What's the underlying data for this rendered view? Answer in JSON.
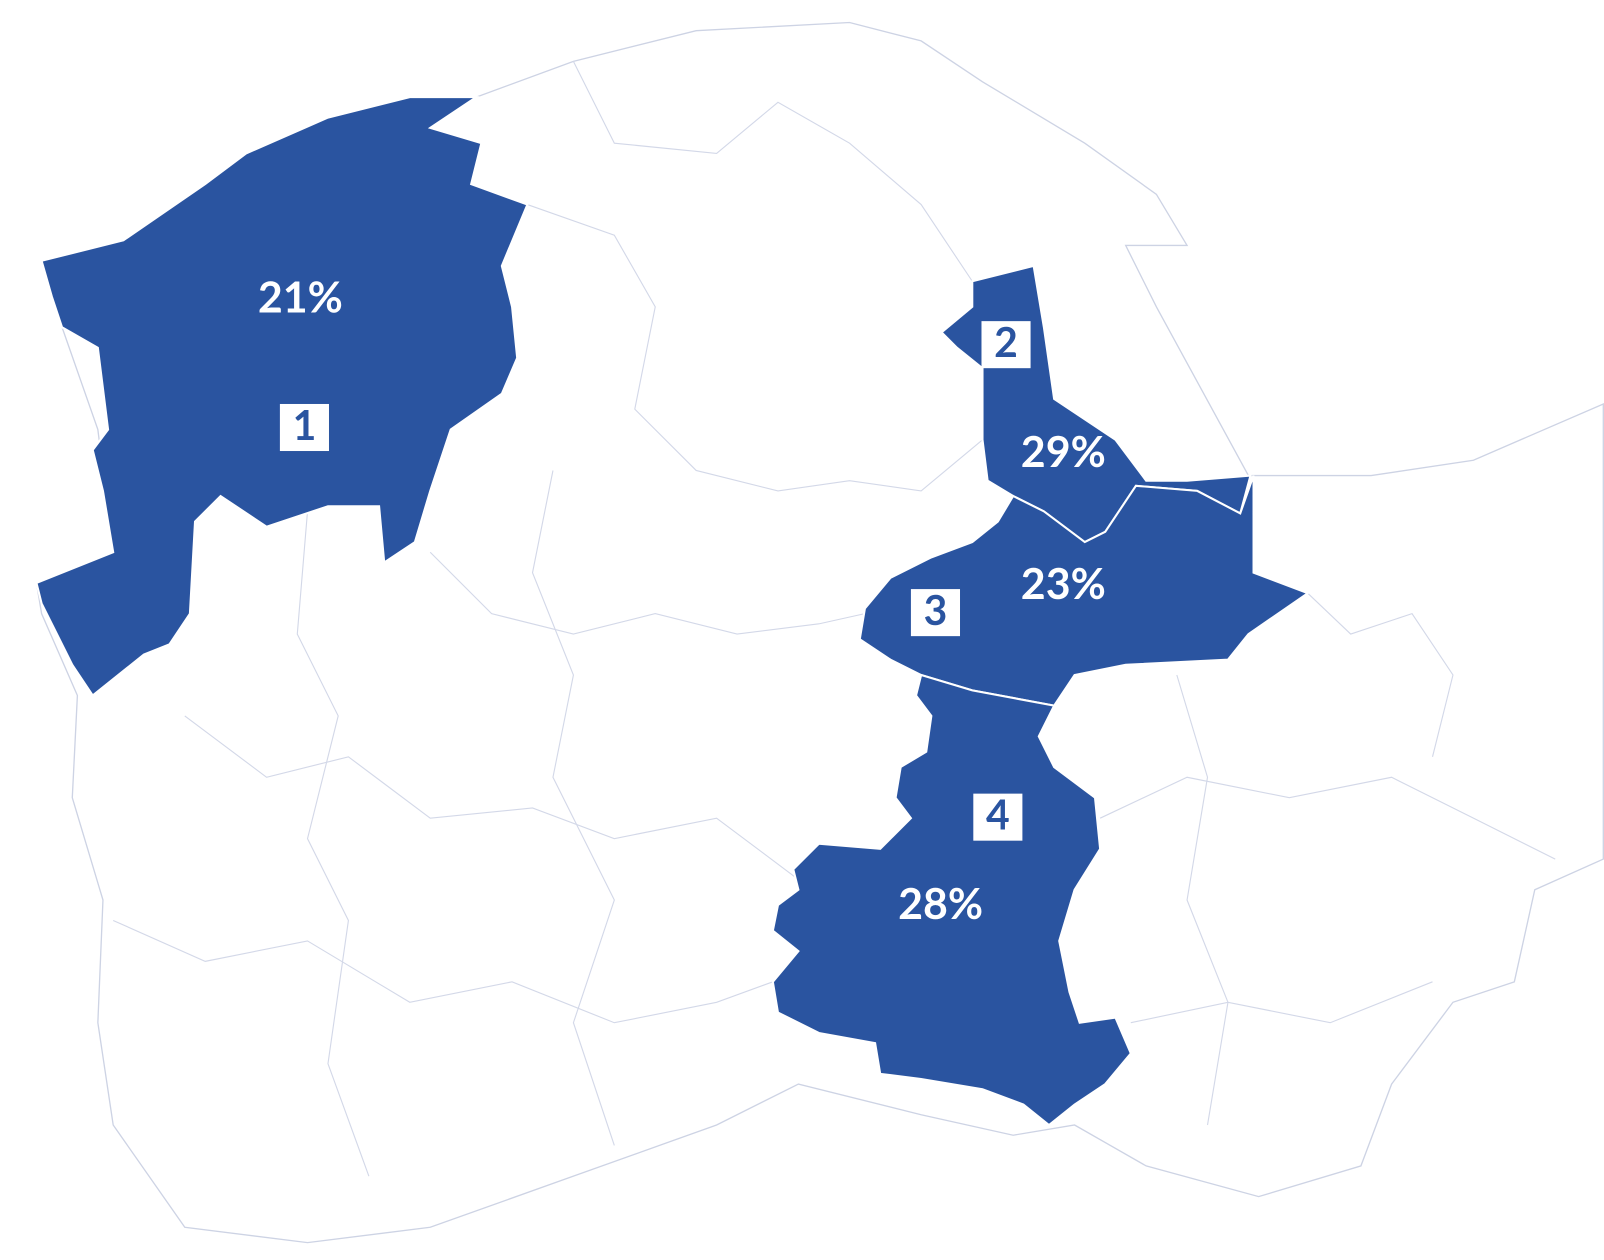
{
  "regions": [
    {
      "number": "1",
      "value": 21,
      "value_label": "21%"
    },
    {
      "number": "2",
      "value": 29,
      "value_label": "29%"
    },
    {
      "number": "3",
      "value": 23,
      "value_label": "23%"
    },
    {
      "number": "4",
      "value": 28,
      "value_label": "28%"
    }
  ]
}
